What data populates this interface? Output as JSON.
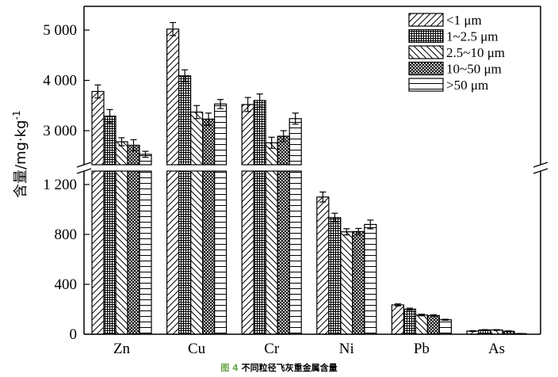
{
  "chart_data": {
    "type": "bar",
    "title": "",
    "xlabel": "",
    "ylabel": "含量/mg·kg",
    "ylabel_superscript": "-1",
    "y_axis_broken": true,
    "ylim_lower": [
      0,
      1350
    ],
    "ylim_upper": [
      2700,
      5400
    ],
    "yticks_lower": [
      0,
      400,
      800,
      1200
    ],
    "yticks_upper": [
      3000,
      4000,
      5000
    ],
    "ytick_labels_lower": [
      "0",
      "400",
      "800",
      "1 200"
    ],
    "ytick_labels_upper": [
      "3 000",
      "4 000",
      "5 000"
    ],
    "grid": false,
    "legend_position": "top-right",
    "categories": [
      "Zn",
      "Cu",
      "Cr",
      "Ni",
      "Pb",
      "As"
    ],
    "series": [
      {
        "name": "<1 μm",
        "pattern": "diagonal-forward",
        "values": [
          3780,
          5020,
          3520,
          1100,
          235,
          25
        ],
        "errors": [
          130,
          130,
          140,
          40,
          8,
          3
        ]
      },
      {
        "name": "1~2.5 μm",
        "pattern": "grid",
        "values": [
          3290,
          4090,
          3600,
          935,
          201,
          34
        ],
        "errors": [
          130,
          120,
          130,
          35,
          8,
          3
        ]
      },
      {
        "name": "2.5~10 μm",
        "pattern": "diagonal-backward",
        "values": [
          2780,
          3370,
          2760,
          821,
          154,
          34
        ],
        "errors": [
          80,
          130,
          110,
          25,
          6,
          3
        ]
      },
      {
        "name": "10~50 μm",
        "pattern": "crosshatch",
        "values": [
          2710,
          3230,
          2890,
          823,
          150,
          24
        ],
        "errors": [
          110,
          120,
          110,
          25,
          6,
          3
        ]
      },
      {
        "name": ">50 μm",
        "pattern": "horizontal",
        "values": [
          2530,
          3530,
          3240,
          880,
          116,
          5
        ],
        "errors": [
          60,
          90,
          110,
          35,
          4,
          1
        ]
      }
    ]
  },
  "caption": {
    "figure_label": "图 4",
    "text": "不同粒径飞灰重金属含量"
  },
  "colors": {
    "ink": "#000000",
    "caption_label": "#6aa84f"
  }
}
